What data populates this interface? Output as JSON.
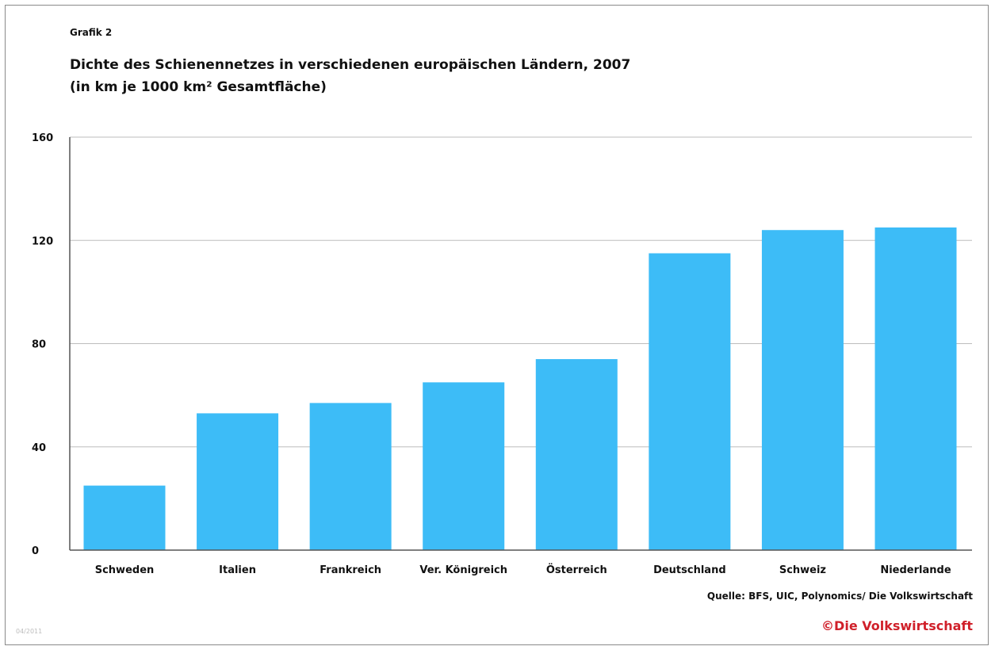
{
  "header": {
    "grafik_label": "Grafik 2",
    "title_line1": "Dichte des Schienennetzes in verschiedenen europäischen Ländern, 2007",
    "title_line2": "(in km je 1000 km² Gesamtfläche)"
  },
  "footer": {
    "source": "Quelle: BFS, UIC, Polynomics/ Die Volkswirtschaft",
    "copyright": "©Die Volkswirtschaft",
    "code": "04/2011"
  },
  "colors": {
    "bar": "#3dbcf7",
    "grid": "#bdbdbd",
    "axis": "#555555",
    "copyright": "#d0202a"
  },
  "chart_data": {
    "type": "bar",
    "categories": [
      "Schweden",
      "Italien",
      "Frankreich",
      "Ver. Königreich",
      "Österreich",
      "Deutschland",
      "Schweiz",
      "Niederlande"
    ],
    "values": [
      25,
      53,
      57,
      65,
      74,
      115,
      124,
      125
    ],
    "yticks": [
      "0",
      "40",
      "80",
      "120",
      "160"
    ],
    "ylim": [
      0,
      160
    ],
    "grid": true,
    "title": "Dichte des Schienennetzes in verschiedenen europäischen Ländern, 2007",
    "ylabel": "(in km je 1000 km² Gesamtfläche)",
    "xlabel": ""
  }
}
